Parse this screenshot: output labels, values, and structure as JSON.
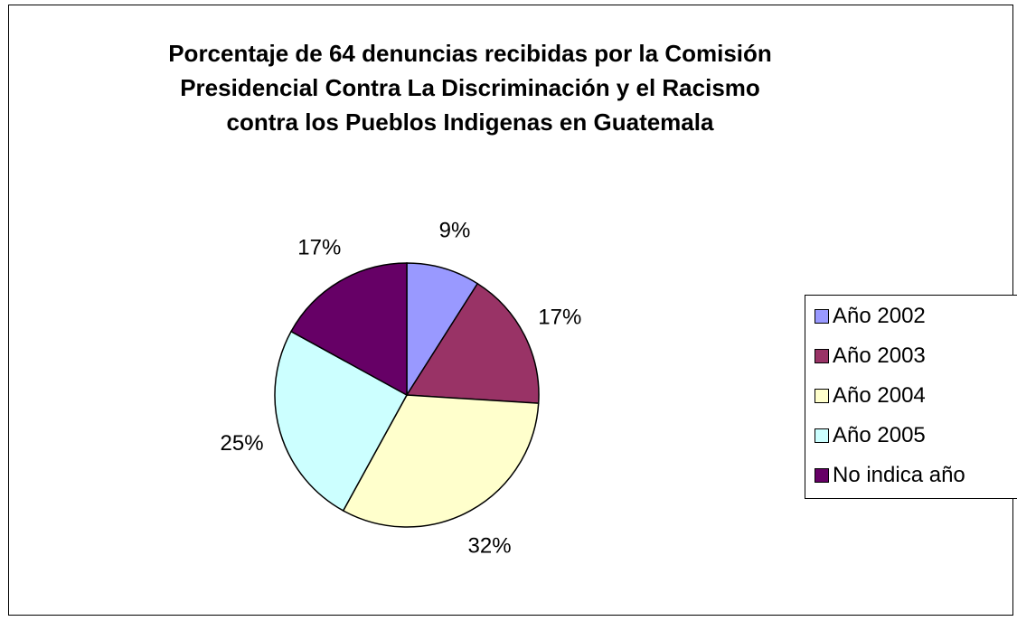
{
  "chart_data": {
    "type": "pie",
    "title_lines": [
      "Porcentaje de 64 denuncias recibidas por la Comisión",
      "Presidencial Contra La Discriminación y el Racismo",
      "contra los Pueblos Indigenas en Guatemala"
    ],
    "slices": [
      {
        "label": "Año 2002",
        "value": 9,
        "display": "9%",
        "color": "#9999FF"
      },
      {
        "label": "Año 2003",
        "value": 17,
        "display": "17%",
        "color": "#993366"
      },
      {
        "label": "Año 2004",
        "value": 32,
        "display": "32%",
        "color": "#FFFFCC"
      },
      {
        "label": "Año 2005",
        "value": 25,
        "display": "25%",
        "color": "#CCFFFF"
      },
      {
        "label": "No indica año",
        "value": 17,
        "display": "17%",
        "color": "#660066"
      }
    ],
    "legend_position": "right"
  }
}
